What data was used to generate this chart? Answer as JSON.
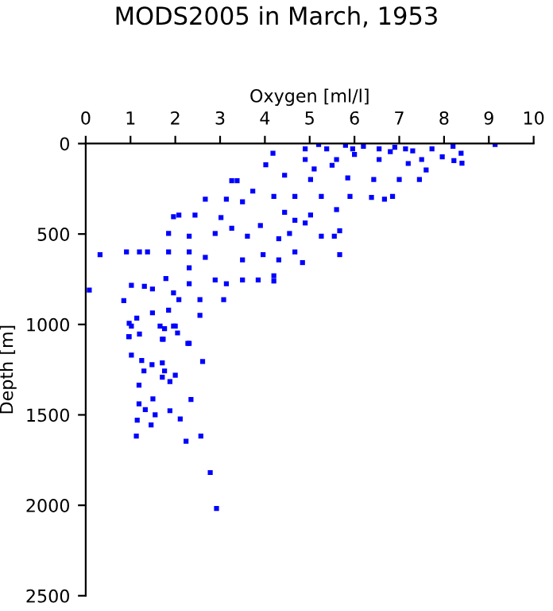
{
  "chart_data": {
    "type": "scatter",
    "title": "MODS2005 in March, 1953",
    "xlabel": "Oxygen [ml/l]",
    "ylabel": "Depth [m]",
    "xlim": [
      0,
      10
    ],
    "xticks": [
      0,
      1,
      2,
      3,
      4,
      5,
      6,
      7,
      8,
      9,
      10
    ],
    "ylim": [
      2500,
      0
    ],
    "yticks": [
      0,
      500,
      1000,
      1500,
      2000,
      2500
    ],
    "grid": false,
    "marker": "square",
    "series": [
      {
        "color": "#0000ff",
        "x": [
          9.14,
          8.38,
          8.4,
          8.22,
          8.2,
          7.73,
          7.14,
          6.55,
          5.96,
          5.38,
          4.9,
          4.9,
          5.6,
          6.55,
          7.5,
          7.96,
          7.6,
          7.45,
          7.0,
          6.43,
          5.85,
          5.02,
          4.44,
          4.18,
          4.02,
          3.38,
          3.26,
          6.85,
          6.67,
          6.38,
          5.9,
          5.6,
          5.26,
          4.67,
          4.2,
          3.73,
          3.5,
          3.14,
          3.02,
          2.67,
          2.44,
          2.08,
          1.96,
          1.85,
          2.31,
          2.89,
          3.26,
          3.61,
          3.9,
          4.31,
          4.67,
          4.9,
          5.26,
          5.55,
          5.67,
          5.02,
          4.44,
          4.55,
          3.96,
          4.31,
          4.67,
          4.84,
          5.67,
          3.5,
          2.67,
          2.31,
          2.31,
          1.85,
          1.38,
          1.2,
          0.91,
          0.32,
          0.08,
          0.85,
          1.02,
          1.31,
          1.49,
          1.79,
          2.31,
          2.89,
          3.14,
          3.5,
          3.85,
          4.2,
          4.2,
          3.08,
          2.55,
          2.08,
          1.85,
          1.96,
          1.49,
          1.14,
          0.97,
          0.97,
          1.2,
          1.66,
          1.96,
          2.31,
          2.55,
          1.73,
          0.96,
          1.02,
          1.71,
          1.76,
          2.0,
          2.28,
          2.05,
          2.61,
          1.02,
          1.25,
          1.48,
          1.71,
          1.76,
          2.0,
          1.3,
          1.71,
          1.88,
          1.19,
          1.5,
          2.35,
          1.19,
          1.33,
          1.55,
          1.88,
          1.15,
          1.46,
          2.11,
          1.13,
          2.24,
          2.57,
          2.78,
          2.92,
          5.2,
          5.8,
          6.2,
          6.9,
          7.3,
          5.1,
          5.5,
          6.0,
          6.8,
          7.2
        ],
        "values": [
          5,
          53,
          108,
          94,
          15,
          29,
          29,
          29,
          29,
          29,
          29,
          88,
          88,
          88,
          88,
          73,
          146,
          199,
          199,
          199,
          190,
          199,
          175,
          53,
          117,
          205,
          205,
          292,
          307,
          298,
          292,
          365,
          292,
          292,
          292,
          263,
          322,
          307,
          409,
          307,
          395,
          395,
          404,
          497,
          512,
          497,
          468,
          512,
          453,
          526,
          424,
          439,
          512,
          512,
          482,
          395,
          380,
          497,
          614,
          643,
          599,
          658,
          614,
          643,
          629,
          687,
          599,
          599,
          599,
          599,
          599,
          614,
          810,
          868,
          784,
          789,
          804,
          746,
          775,
          754,
          775,
          754,
          754,
          760,
          731,
          863,
          863,
          863,
          921,
          825,
          936,
          965,
          994,
          1067,
          1053,
          1009,
          1009,
          1105,
          950,
          1082,
          1067,
          1009,
          1082,
          1023,
          1009,
          1105,
          1047,
          1205,
          1170,
          1199,
          1222,
          1213,
          1257,
          1281,
          1257,
          1292,
          1316,
          1336,
          1412,
          1415,
          1439,
          1471,
          1500,
          1477,
          1529,
          1556,
          1523,
          1617,
          1646,
          1617,
          1819,
          2018,
          5,
          10,
          15,
          20,
          40,
          140,
          120,
          60,
          45,
          110
        ]
      }
    ]
  }
}
